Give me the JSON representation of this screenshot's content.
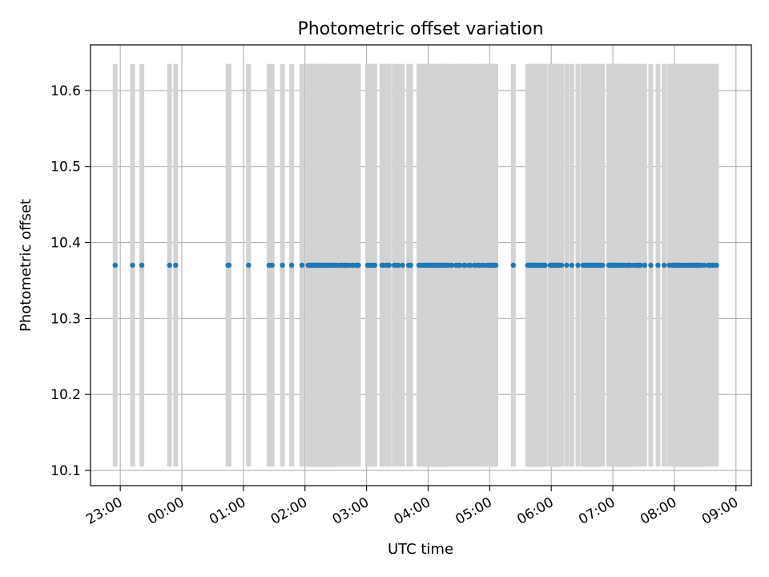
{
  "chart_data": {
    "type": "scatter",
    "title": "Photometric offset variation",
    "xlabel": "UTC time",
    "ylabel": "Photometric offset",
    "x_tick_labels": [
      "23:00",
      "00:00",
      "01:00",
      "02:00",
      "03:00",
      "04:00",
      "05:00",
      "06:00",
      "07:00",
      "08:00",
      "09:00"
    ],
    "y_tick_labels": [
      "10.1",
      "10.2",
      "10.3",
      "10.4",
      "10.5",
      "10.6"
    ],
    "yticks": [
      10.1,
      10.2,
      10.3,
      10.4,
      10.5,
      10.6
    ],
    "ylim": [
      10.08,
      10.66
    ],
    "xlim": [
      "22:31",
      "09:15"
    ],
    "grid": true,
    "series": [
      {
        "marker_color": "#1f77b4",
        "errorbar_color": "#d3d3d3",
        "y": 10.37,
        "yerr": 0.265,
        "x": [
          "22:55",
          "23:12",
          "23:21",
          "23:48",
          "23:54",
          "00:45",
          "00:46",
          "01:05",
          "01:25",
          "01:28",
          "01:38",
          "01:47",
          "01:57",
          "02:03",
          "02:04",
          "02:05",
          "02:06",
          "02:07",
          "02:08",
          "02:09",
          "02:10",
          "02:11",
          "02:12",
          "02:13",
          "02:14",
          "02:15",
          "02:16",
          "02:17",
          "02:18",
          "02:19",
          "02:21",
          "02:22",
          "02:24",
          "02:25",
          "02:26",
          "02:27",
          "02:29",
          "02:30",
          "02:31",
          "02:34",
          "02:35",
          "02:37",
          "02:38",
          "02:40",
          "02:41",
          "02:43",
          "02:46",
          "02:47",
          "02:50",
          "02:51",
          "02:52",
          "03:01",
          "03:02",
          "03:03",
          "03:05",
          "03:07",
          "03:08",
          "03:15",
          "03:16",
          "03:19",
          "03:21",
          "03:22",
          "03:27",
          "03:29",
          "03:31",
          "03:35",
          "03:41",
          "03:43",
          "03:51",
          "03:52",
          "03:54",
          "03:56",
          "03:57",
          "03:59",
          "04:00",
          "04:01",
          "04:02",
          "04:04",
          "04:05",
          "04:06",
          "04:07",
          "04:08",
          "04:10",
          "04:11",
          "04:13",
          "04:14",
          "04:15",
          "04:16",
          "04:17",
          "04:18",
          "04:20",
          "04:23",
          "04:27",
          "04:29",
          "04:31",
          "04:35",
          "04:36",
          "04:40",
          "04:41",
          "04:45",
          "04:48",
          "04:50",
          "04:53",
          "04:54",
          "04:57",
          "04:59",
          "05:00",
          "05:01",
          "05:02",
          "05:03",
          "05:05",
          "05:06",
          "05:23",
          "05:37",
          "05:38",
          "05:39",
          "05:40",
          "05:41",
          "05:42",
          "05:43",
          "05:44",
          "05:45",
          "05:46",
          "05:47",
          "05:48",
          "05:49",
          "05:50",
          "05:51",
          "05:53",
          "05:54",
          "05:59",
          "06:00",
          "06:01",
          "06:02",
          "06:03",
          "06:04",
          "06:05",
          "06:06",
          "06:07",
          "06:08",
          "06:10",
          "06:15",
          "06:20",
          "06:26",
          "06:31",
          "06:33",
          "06:34",
          "06:36",
          "06:37",
          "06:38",
          "06:39",
          "06:40",
          "06:41",
          "06:43",
          "06:44",
          "06:46",
          "06:47",
          "06:48",
          "06:50",
          "06:56",
          "06:57",
          "06:58",
          "06:59",
          "07:00",
          "07:01",
          "07:02",
          "07:03",
          "07:05",
          "07:06",
          "07:07",
          "07:08",
          "07:09",
          "07:10",
          "07:11",
          "07:13",
          "07:15",
          "07:16",
          "07:17",
          "07:20",
          "07:23",
          "07:24",
          "07:25",
          "07:26",
          "07:27",
          "07:31",
          "07:37",
          "07:44",
          "07:50",
          "07:55",
          "07:58",
          "07:59",
          "08:00",
          "08:01",
          "08:02",
          "08:03",
          "08:04",
          "08:05",
          "08:07",
          "08:08",
          "08:10",
          "08:12",
          "08:13",
          "08:14",
          "08:15",
          "08:16",
          "08:18",
          "08:19",
          "08:21",
          "08:22",
          "08:23",
          "08:24",
          "08:25",
          "08:26",
          "08:29",
          "08:33",
          "08:34",
          "08:35",
          "08:37",
          "08:38",
          "08:41"
        ]
      }
    ]
  }
}
